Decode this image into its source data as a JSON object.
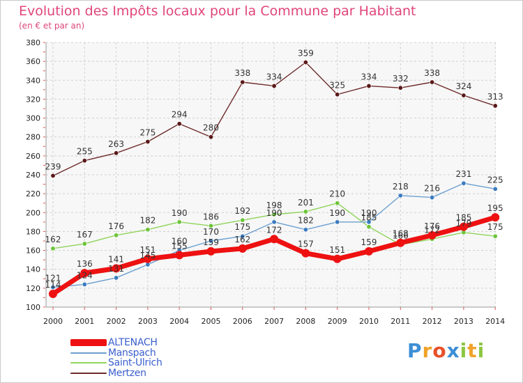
{
  "title": "Evolution des Impôts locaux pour la Commune par Habitant",
  "subtitle": "(en € et par an)",
  "logo": {
    "text": "Proxiti",
    "letters": [
      {
        "ch": "P",
        "color": "#3c8fd6"
      },
      {
        "ch": "r",
        "color": "#f0a22a"
      },
      {
        "ch": "o",
        "color": "#e8502a"
      },
      {
        "ch": "x",
        "color": "#3c8fd6"
      },
      {
        "ch": "i",
        "color": "#8cc63f"
      },
      {
        "ch": "t",
        "color": "#f0a22a"
      },
      {
        "ch": "i",
        "color": "#8cc63f"
      }
    ]
  },
  "chart_data": {
    "type": "line",
    "categories": [
      "2000",
      "2001",
      "2002",
      "2003",
      "2004",
      "2005",
      "2006",
      "2007",
      "2008",
      "2009",
      "2010",
      "2011",
      "2012",
      "2013",
      "2014"
    ],
    "ylim": [
      100,
      380
    ],
    "yticks": [
      100,
      120,
      140,
      160,
      180,
      200,
      220,
      240,
      260,
      280,
      300,
      320,
      340,
      360,
      380
    ],
    "grid": true,
    "legend_position": "bottom-left",
    "series": [
      {
        "name": "Mertzen",
        "color": "#6e2a2a",
        "dot": "#5a1818",
        "width": 1.4,
        "values": [
          239,
          255,
          263,
          275,
          294,
          280,
          338,
          334,
          359,
          325,
          334,
          332,
          338,
          324,
          313
        ]
      },
      {
        "name": "Saint-Ulrich",
        "color": "#8fd45a",
        "dot": "#6cc43a",
        "width": 1.4,
        "values": [
          162,
          167,
          176,
          182,
          190,
          186,
          192,
          198,
          201,
          210,
          185,
          166,
          172,
          179,
          175
        ]
      },
      {
        "name": "Manspach",
        "color": "#6c9fd0",
        "dot": "#3a7bc0",
        "width": 1.4,
        "values": [
          121,
          124,
          131,
          145,
          160,
          170,
          175,
          190,
          182,
          190,
          190,
          218,
          216,
          231,
          225
        ]
      },
      {
        "name": "ALTENACH",
        "color": "#ee1111",
        "dot": "#ee1111",
        "width": 7,
        "values": [
          114,
          136,
          141,
          151,
          155,
          159,
          162,
          172,
          157,
          151,
          159,
          168,
          176,
          185,
          195
        ]
      }
    ],
    "data_labels": [
      {
        "series": "Mertzen",
        "labels": [
          "239",
          "255",
          "263",
          "275",
          "294",
          "280",
          "338",
          "334",
          "359",
          "325",
          "334",
          "332",
          "338",
          "324",
          "313"
        ]
      },
      {
        "series": "Saint-Ulrich",
        "labels": [
          "162",
          "167",
          "176",
          "182",
          "190",
          "186",
          "192",
          "198",
          "201",
          "210",
          "185",
          "166",
          "172",
          "179",
          "175"
        ]
      },
      {
        "series": "Manspach",
        "labels": [
          "121",
          "124",
          "131",
          "145",
          "160",
          "170",
          "175",
          "190",
          "182",
          "190",
          "190",
          "218",
          "216",
          "231",
          "225"
        ]
      },
      {
        "series": "ALTENACH",
        "labels": [
          "114",
          "136",
          "141",
          "151",
          "155",
          "159",
          "162",
          "172",
          "157",
          "151",
          "159",
          "168",
          "176",
          "185",
          "195"
        ]
      }
    ]
  },
  "legend": [
    {
      "label": "ALTENACH",
      "color": "#ee1111",
      "thickness": 10
    },
    {
      "label": "Manspach",
      "color": "#6c9fd0",
      "thickness": 2
    },
    {
      "label": "Saint-Ulrich",
      "color": "#8fd45a",
      "thickness": 2
    },
    {
      "label": "Mertzen",
      "color": "#6e2a2a",
      "thickness": 2
    }
  ]
}
